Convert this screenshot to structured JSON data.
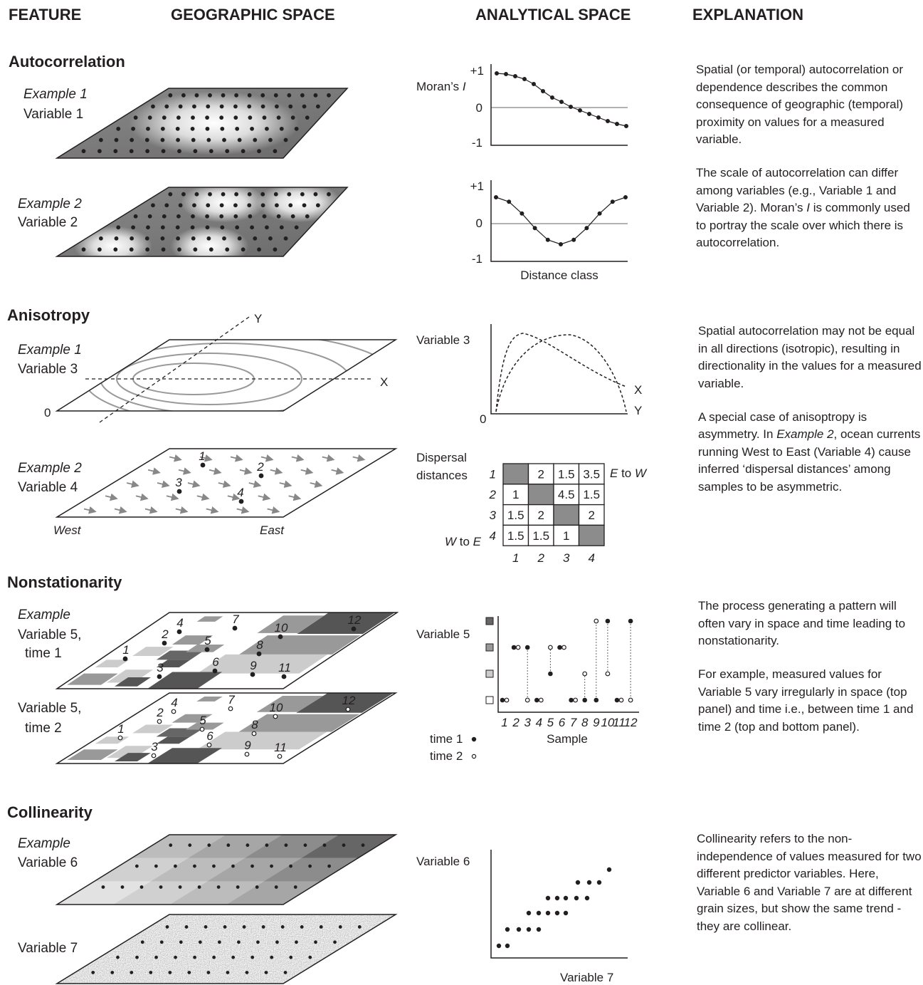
{
  "headers": {
    "feature": "FEATURE",
    "geographic": "GEOGRAPHIC SPACE",
    "analytical": "ANALYTICAL SPACE",
    "explanation": "EXPLANATION"
  },
  "autocorrelation": {
    "title": "Autocorrelation",
    "example1": {
      "label": "Example 1",
      "variable": "Variable 1"
    },
    "example2": {
      "label": "Example 2",
      "variable": "Variable 2"
    },
    "chart1": {
      "y_label": [
        "Moran’s ",
        "I"
      ],
      "yticks": [
        "+1",
        "0",
        "-1"
      ]
    },
    "chart2": {
      "yticks": [
        "+1",
        "0",
        "-1"
      ],
      "x_label": "Distance class"
    },
    "explanation": [
      [
        "Spatial (or temporal) autocorrelation or dependence describes the common consequence of geographic (temporal) proximity on values for a measured variable."
      ],
      [
        "The scale of autocorrelation can differ among variables (e.g., Variable 1 and Variable 2). Moran’s ",
        "I",
        " is commonly used to portray the scale over which there is autocorrelation."
      ]
    ]
  },
  "anisotropy": {
    "title": "Anisotropy",
    "example1": {
      "label": "Example 1",
      "variable": "Variable 3",
      "axis_x": "X",
      "axis_y": "Y",
      "origin": "0"
    },
    "example2": {
      "label": "Example 2",
      "variable": "Variable 4",
      "samples": [
        "1",
        "2",
        "3",
        "4"
      ],
      "west": "West",
      "east": "East"
    },
    "chart1": {
      "y_label": "Variable 3",
      "origin": "0",
      "curves": [
        "X",
        "Y"
      ]
    },
    "chart2": {
      "label": [
        "Dispersal",
        "distances"
      ],
      "top_right": [
        "E",
        " to ",
        "W"
      ],
      "bottom_left": [
        "W",
        " to ",
        "E"
      ],
      "row_labels": [
        "1",
        "2",
        "3",
        "4"
      ],
      "col_labels": [
        "1",
        "2",
        "3",
        "4"
      ],
      "cells": [
        [
          null,
          2,
          1.5,
          3.5
        ],
        [
          1,
          null,
          4.5,
          1.5
        ],
        [
          1.5,
          2,
          null,
          2
        ],
        [
          1.5,
          1.5,
          1,
          null
        ]
      ]
    },
    "explanation": [
      [
        "Spatial autocorrelation may not be equal in all directions (isotropic), resulting in directionality in the values for a measured variable."
      ],
      [
        "A special case of anisoptropy is asymmetry. In ",
        "Example 2",
        ", ocean currents running West to East (Variable 4) cause inferred ‘dispersal distances’ among samples to be asymmetric."
      ]
    ]
  },
  "nonstationarity": {
    "title": "Nonstationarity",
    "example": {
      "label": "Example",
      "time1": [
        "Variable 5,",
        "time 1"
      ],
      "time2": [
        "Variable 5,",
        "time 2"
      ]
    },
    "samples": [
      "1",
      "2",
      "3",
      "4",
      "5",
      "6",
      "7",
      "8",
      "9",
      "10",
      "11",
      "12"
    ],
    "chart": {
      "y_label": "Variable 5",
      "x_label": "Sample",
      "levels": [
        "#ffffff",
        "#cccccc",
        "#999999",
        "#666666"
      ],
      "time1": {
        "name": "time 1",
        "values": [
          0,
          2,
          2,
          0,
          1,
          2,
          0,
          0,
          0,
          3,
          0,
          3
        ]
      },
      "time2": {
        "name": "time 2",
        "values": [
          0,
          2,
          0,
          0,
          2,
          2,
          0,
          1,
          3,
          1,
          0,
          0
        ]
      }
    },
    "explanation": [
      [
        "The process generating a pattern will often vary in space and time leading to nonstationarity."
      ],
      [
        "For example, measured values for Variable 5 vary irregularly in space (top panel) and time i.e., between time 1 and time 2 (top and bottom panel)."
      ]
    ]
  },
  "collinearity": {
    "title": "Collinearity",
    "example": {
      "label": "Example",
      "variable6": "Variable 6",
      "variable7": "Variable 7"
    },
    "chart": {
      "y_label": "Variable 6",
      "x_label": "Variable 7"
    },
    "explanation": [
      [
        "Collinearity refers to the non-independence of values measured for two different predictor variables. Here, Variable 6 and Variable 7 are at different grain sizes, but show the same trend - they are collinear."
      ]
    ]
  }
}
